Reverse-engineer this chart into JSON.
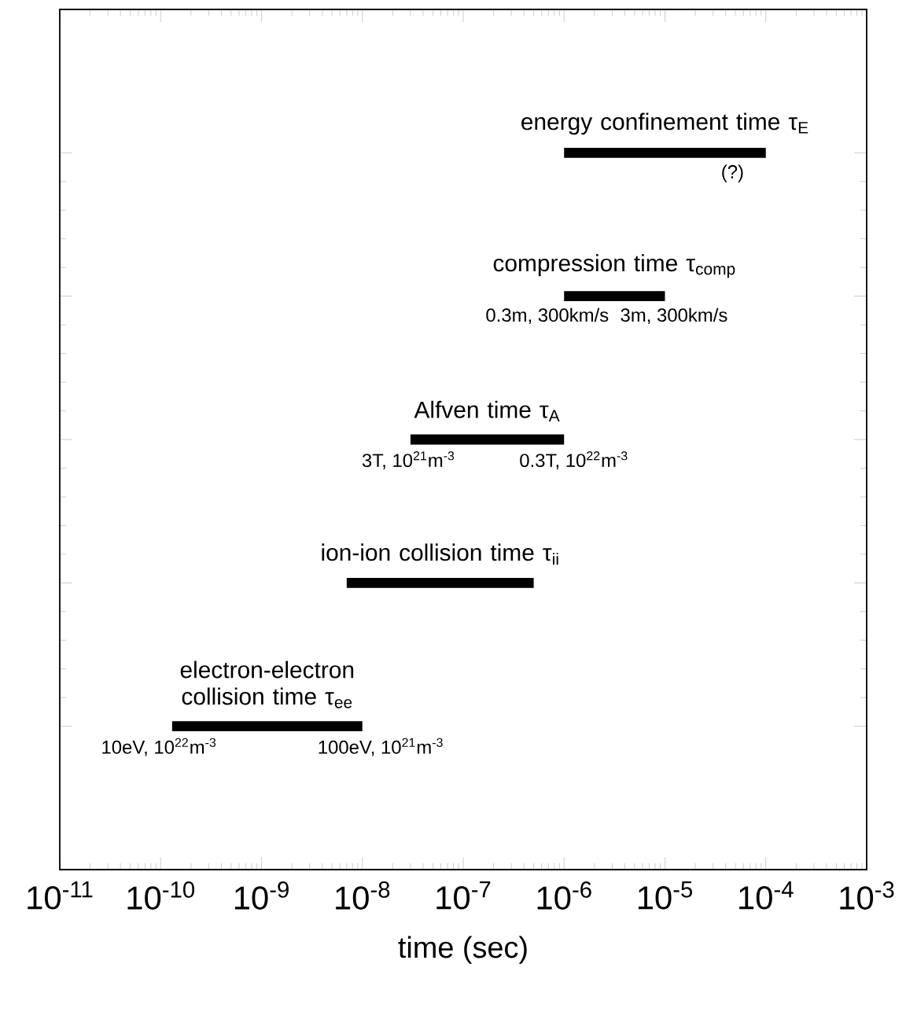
{
  "chart_data": {
    "type": "bar",
    "orientation": "horizontal",
    "color": "#000000",
    "categories": [
      "energy confinement time τ$_{E}$",
      "compression time τ$_{comp}$",
      "Alfven time τ$_{A}$",
      "ion-ion collision time τ$_{ii}$",
      "electron-electron collision time τ$_{ee}$"
    ],
    "base": [
      1e-06,
      1e-06,
      3e-08,
      7e-09,
      1.3e-10
    ],
    "values": [
      9.9e-05,
      9e-06,
      9.7e-07,
      4.93e-07,
      9.87e-09
    ],
    "log": "x",
    "xlim": [
      1e-11,
      0.001
    ],
    "xticks": [
      {
        "value": 1e-11,
        "label": "10$^{-11}$"
      },
      {
        "value": 1e-10,
        "label": "10$^{-10}$"
      },
      {
        "value": 1e-09,
        "label": "10$^{-9}$"
      },
      {
        "value": 1e-08,
        "label": "10$^{-8}$"
      },
      {
        "value": 1e-07,
        "label": "10$^{-7}$"
      },
      {
        "value": 1e-06,
        "label": "10$^{-6}$"
      },
      {
        "value": 1e-05,
        "label": "10$^{-5}$"
      },
      {
        "value": 0.0001,
        "label": "10$^{-4}$"
      },
      {
        "value": 0.001,
        "label": "10$^{-3}$"
      }
    ],
    "xlabel": "time (sec)",
    "annotations": [
      "(?)",
      "0.3m, 300km/s",
      "3m, 300km/s",
      "3T, 10$^{21}$m$^{-3}$",
      "0.3T, 10$^{22}$m$^{-3}$",
      "10eV, 10$^{22}$m$^{-3}$",
      "100eV, 10$^{21}$m$^{-3}$"
    ]
  }
}
